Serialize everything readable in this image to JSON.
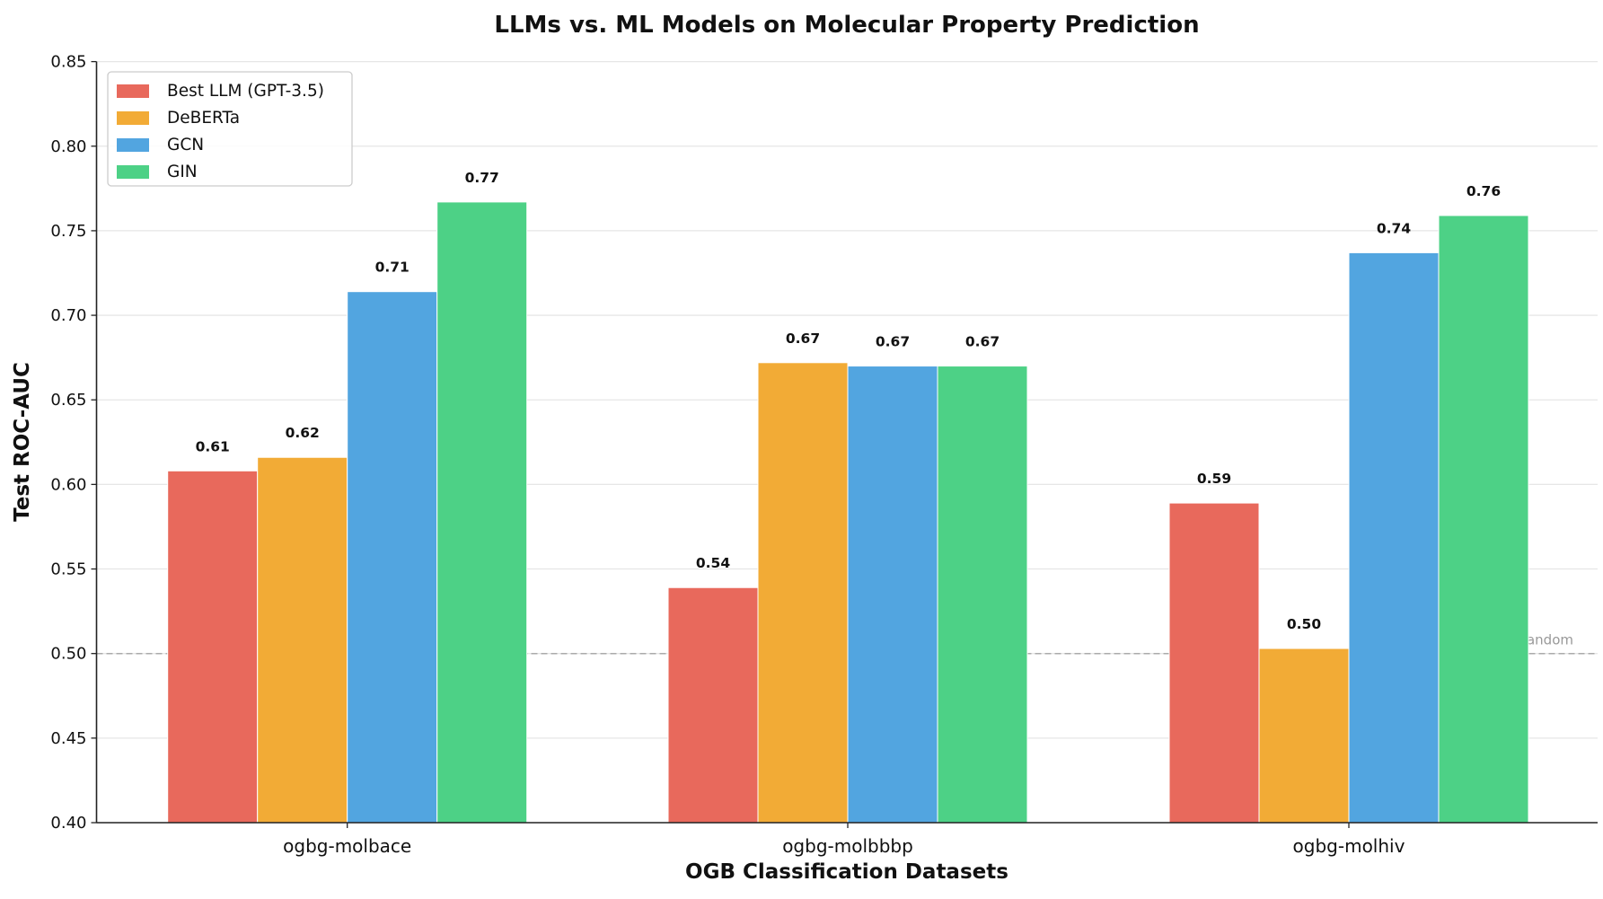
{
  "chart_data": {
    "type": "bar",
    "title": "LLMs vs. ML Models on Molecular Property Prediction",
    "xlabel": "OGB Classification Datasets",
    "ylabel": "Test ROC-AUC",
    "ylim": [
      0.4,
      0.85
    ],
    "yticks": [
      "0.40",
      "0.45",
      "0.50",
      "0.55",
      "0.60",
      "0.65",
      "0.70",
      "0.75",
      "0.80",
      "0.85"
    ],
    "grid": "horizontal",
    "legend": "top-left",
    "categories": [
      "ogbg-molbace",
      "ogbg-molbbbp",
      "ogbg-molhiv"
    ],
    "series": [
      {
        "name": "Best LLM (GPT-3.5)",
        "color": "#e8695c",
        "values": [
          0.608,
          0.539,
          0.589
        ],
        "labels": [
          "0.61",
          "0.54",
          "0.59"
        ]
      },
      {
        "name": "DeBERTa",
        "color": "#f2ab36",
        "values": [
          0.616,
          0.672,
          0.503
        ],
        "labels": [
          "0.62",
          "0.67",
          "0.50"
        ]
      },
      {
        "name": "GCN",
        "color": "#52a5e0",
        "values": [
          0.714,
          0.67,
          0.737
        ],
        "labels": [
          "0.71",
          "0.67",
          "0.74"
        ]
      },
      {
        "name": "GIN",
        "color": "#4dd186",
        "values": [
          0.767,
          0.67,
          0.759
        ],
        "labels": [
          "0.77",
          "0.67",
          "0.76"
        ]
      }
    ],
    "reference_line": {
      "value": 0.5,
      "label": "Random",
      "color": "#aaaaaa"
    }
  }
}
